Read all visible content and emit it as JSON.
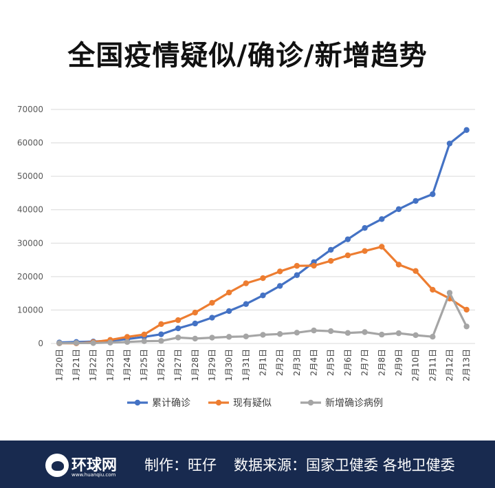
{
  "header": {
    "title": "全国疫情疑似/确诊/新增趋势"
  },
  "colors": {
    "cumulative": "#4472c4",
    "suspected": "#ed7d31",
    "new": "#a5a5a5",
    "footer_bg": "#182a4f"
  },
  "chart_data": {
    "type": "line",
    "title": "全国疫情疑似/确诊/新增趋势",
    "ylim": [
      0,
      70000
    ],
    "yticks": [
      "0",
      "10000",
      "20000",
      "30000",
      "40000",
      "50000",
      "60000",
      "70000"
    ],
    "categories": [
      "1月20日",
      "1月21日",
      "1月22日",
      "1月23日",
      "1月24日",
      "1月25日",
      "1月26日",
      "1月27日",
      "1月28日",
      "1月29日",
      "1月30日",
      "1月31日",
      "2月1日",
      "2月2日",
      "2月3日",
      "2月4日",
      "2月5日",
      "2月6日",
      "2月7日",
      "2月8日",
      "2月9日",
      "2月10日",
      "2月11日",
      "2月12日",
      "2月13日"
    ],
    "series": [
      {
        "name": "累计确诊",
        "color": "#4472c4",
        "values": [
          291,
          440,
          571,
          830,
          1287,
          1975,
          2744,
          4515,
          5974,
          7711,
          9692,
          11791,
          14380,
          17205,
          20438,
          24324,
          28018,
          31161,
          34546,
          37198,
          40171,
          42638,
          44653,
          59804,
          63851
        ]
      },
      {
        "name": "现有疑似",
        "color": "#ed7d31",
        "values": [
          54,
          37,
          393,
          1072,
          1965,
          2684,
          5794,
          6973,
          9239,
          12167,
          15238,
          17988,
          19544,
          21558,
          23214,
          23260,
          24702,
          26359,
          27657,
          28942,
          23589,
          21675,
          16067,
          13435,
          10109
        ]
      },
      {
        "name": "新增确诊病例",
        "color": "#a5a5a5",
        "values": [
          77,
          149,
          131,
          259,
          444,
          688,
          769,
          1771,
          1459,
          1737,
          1982,
          2102,
          2590,
          2829,
          3235,
          3887,
          3694,
          3143,
          3399,
          2656,
          3062,
          2478,
          2015,
          15152,
          5090
        ]
      }
    ],
    "legend_position": "bottom",
    "grid": true
  },
  "footer": {
    "logo_text": "环球网",
    "logo_url": "www.huanqiu.com",
    "credit": "制作：旺仔",
    "source": "数据来源：国家卫健委 各地卫健委"
  }
}
